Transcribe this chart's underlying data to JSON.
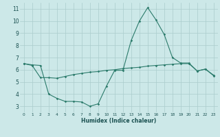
{
  "line1_x": [
    0,
    1,
    2,
    3,
    4,
    5,
    6,
    7,
    8,
    9,
    10,
    11,
    12,
    13,
    14,
    15,
    16,
    17,
    18,
    19,
    20,
    21,
    22,
    23
  ],
  "line1_y": [
    6.5,
    6.4,
    6.35,
    4.0,
    3.65,
    3.4,
    3.4,
    3.35,
    3.0,
    3.2,
    4.65,
    5.95,
    5.95,
    8.4,
    10.0,
    11.1,
    10.1,
    8.9,
    7.0,
    6.55,
    6.55,
    5.9,
    6.05,
    5.5
  ],
  "line2_x": [
    0,
    1,
    2,
    3,
    4,
    5,
    6,
    7,
    8,
    9,
    10,
    11,
    12,
    13,
    14,
    15,
    16,
    17,
    18,
    19,
    20,
    21,
    22,
    23
  ],
  "line2_y": [
    6.5,
    6.35,
    5.35,
    5.35,
    5.3,
    5.45,
    5.6,
    5.7,
    5.8,
    5.85,
    5.95,
    6.0,
    6.1,
    6.15,
    6.2,
    6.3,
    6.35,
    6.4,
    6.45,
    6.5,
    6.5,
    5.9,
    6.05,
    5.55
  ],
  "color": "#2a7a6a",
  "bg_color": "#cce8e8",
  "grid_color": "#aacccc",
  "xlabel": "Humidex (Indice chaleur)",
  "xlim": [
    -0.5,
    23.5
  ],
  "ylim": [
    2.5,
    11.5
  ],
  "yticks": [
    3,
    4,
    5,
    6,
    7,
    8,
    9,
    10,
    11
  ],
  "xticks": [
    0,
    1,
    2,
    3,
    4,
    5,
    6,
    7,
    8,
    9,
    10,
    11,
    12,
    13,
    14,
    15,
    16,
    17,
    18,
    19,
    20,
    21,
    22,
    23
  ],
  "xlabel_fontsize": 5.5,
  "xlabel_color": "#1a5050",
  "ytick_fontsize": 5.5,
  "xtick_fontsize": 4.2
}
